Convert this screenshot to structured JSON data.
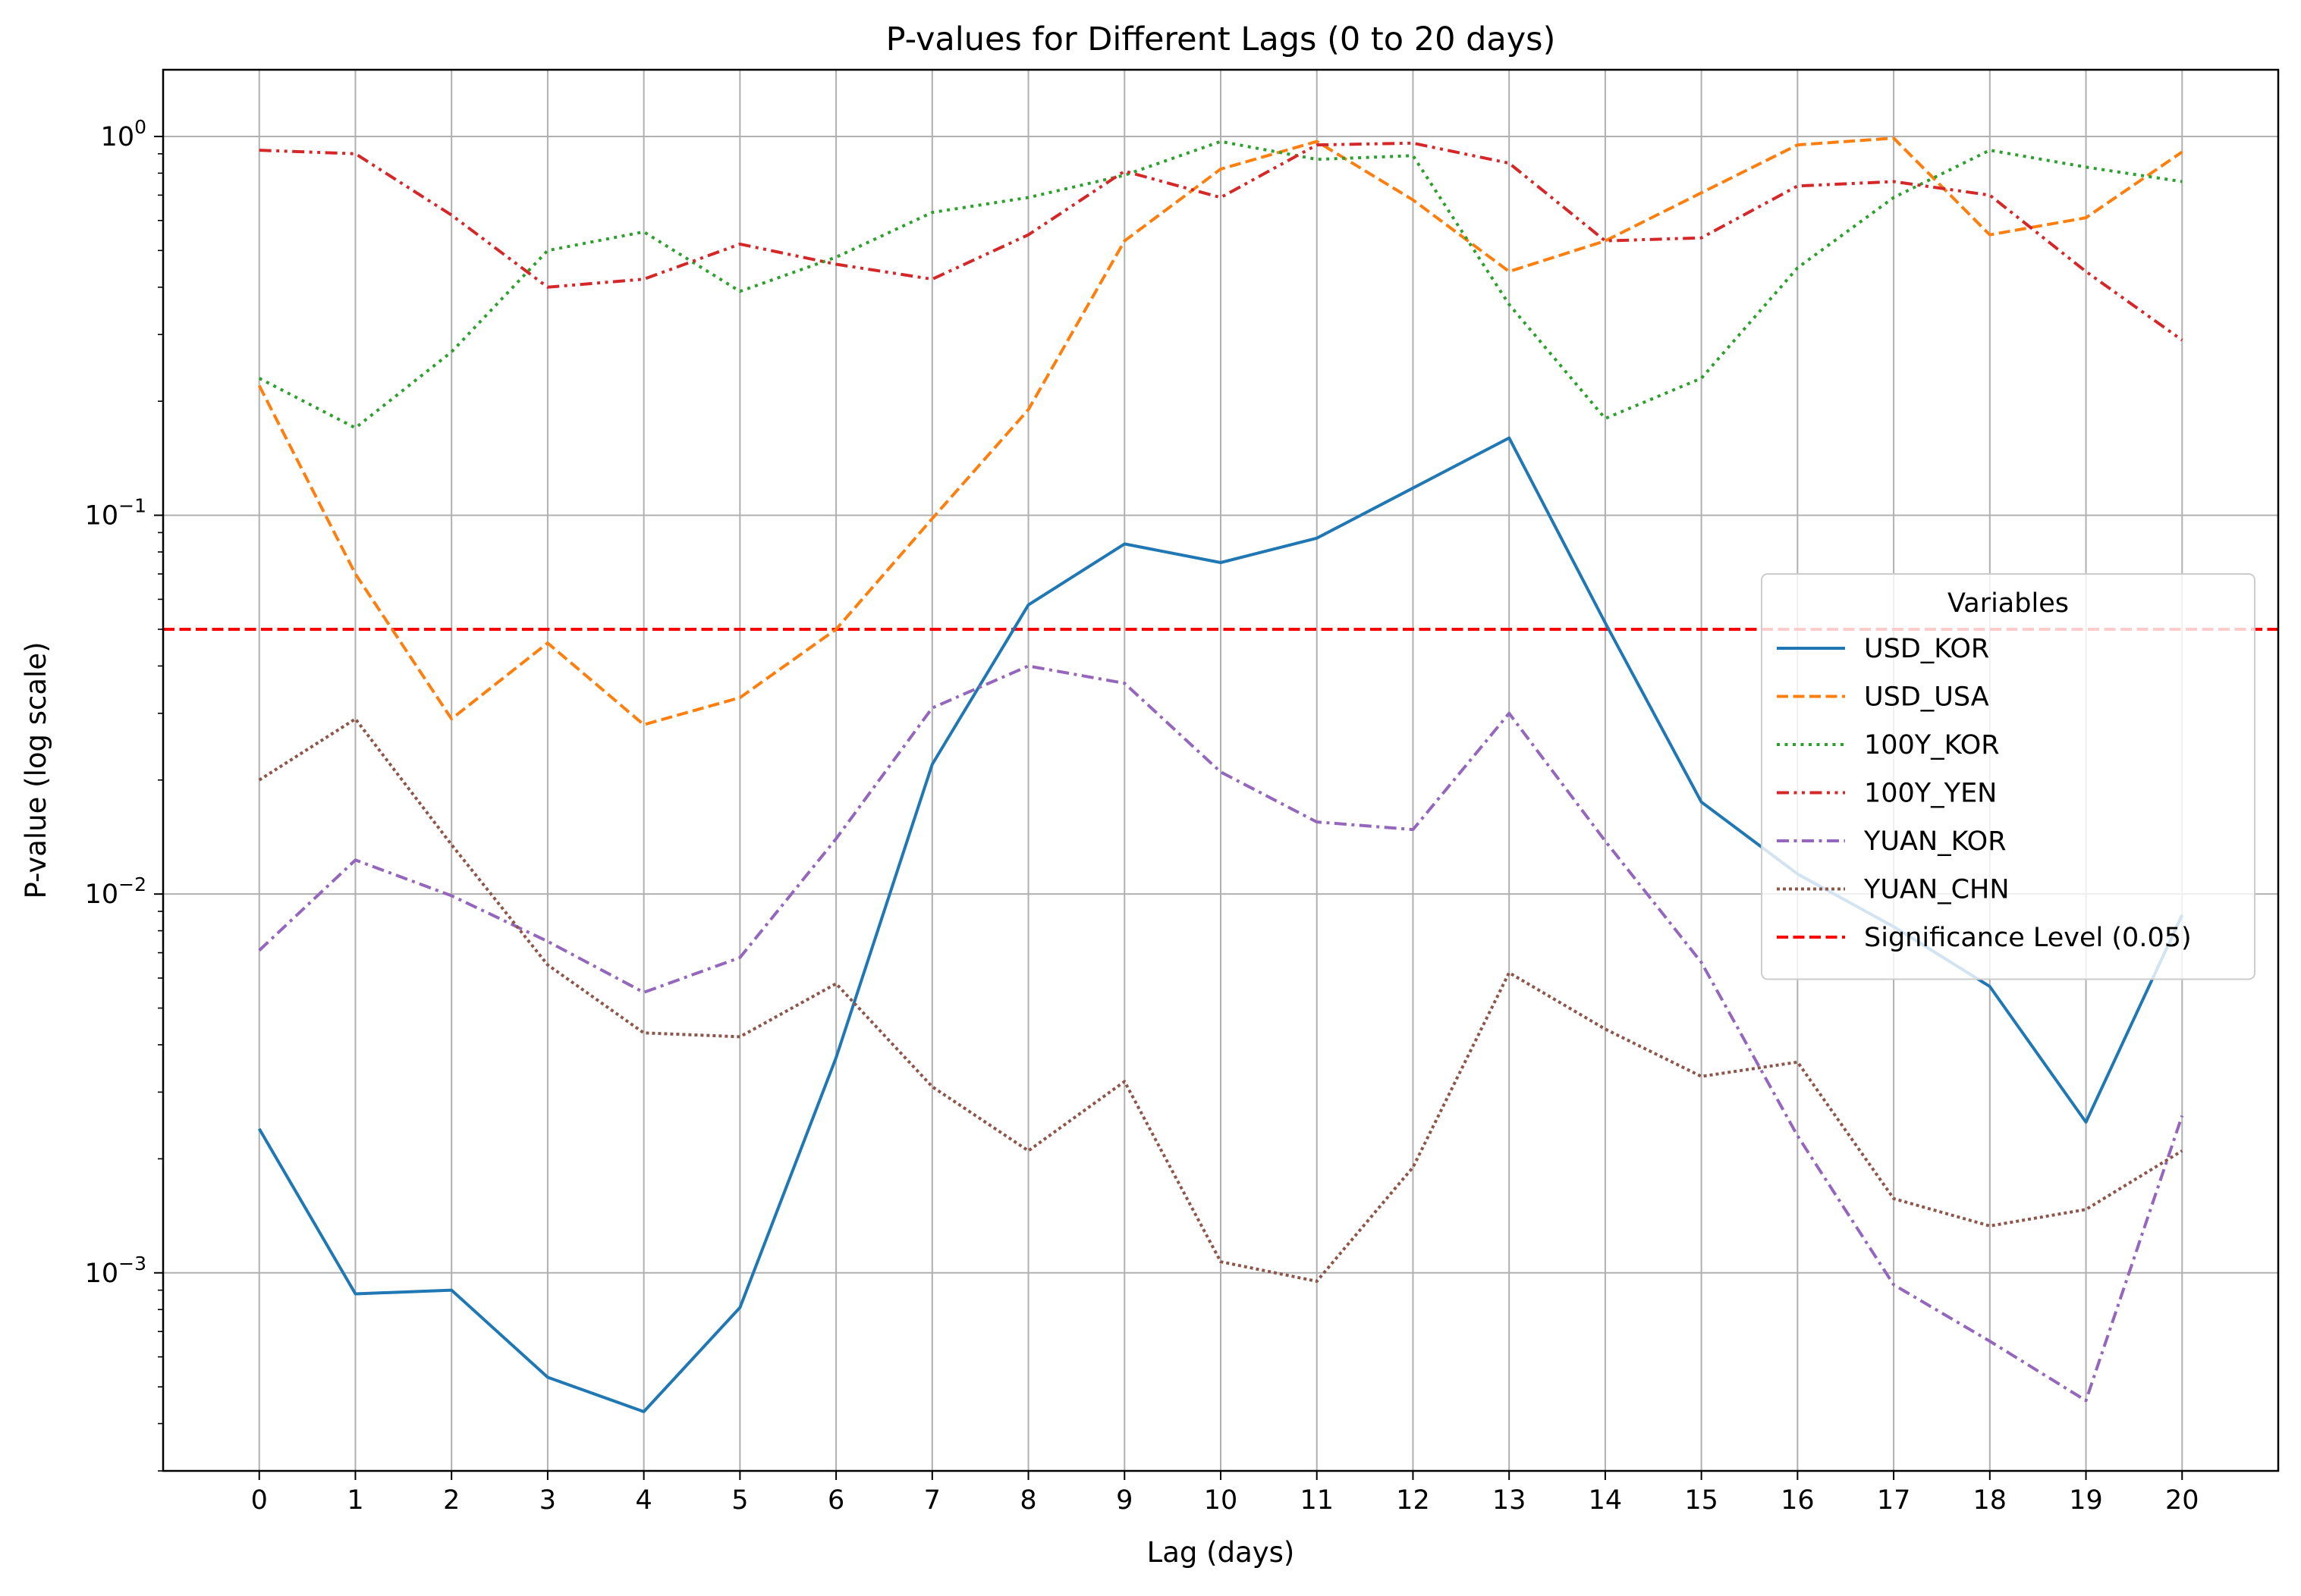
{
  "chart_data": {
    "type": "line",
    "title": "P-values for Different Lags (0 to 20 days)",
    "xlabel": "Lag (days)",
    "ylabel": "P-value (log scale)",
    "y_scale": "log",
    "ylim": [
      0.0003,
      1.5
    ],
    "xlim": [
      -1,
      21
    ],
    "grid": true,
    "legend_title": "Variables",
    "legend_position": "center-right",
    "x": [
      0,
      1,
      2,
      3,
      4,
      5,
      6,
      7,
      8,
      9,
      10,
      11,
      12,
      13,
      14,
      15,
      16,
      17,
      18,
      19,
      20
    ],
    "x_ticks": [
      "0",
      "1",
      "2",
      "3",
      "4",
      "5",
      "6",
      "7",
      "8",
      "9",
      "10",
      "11",
      "12",
      "13",
      "14",
      "15",
      "16",
      "17",
      "18",
      "19",
      "20"
    ],
    "y_ticks": [
      {
        "base": "10",
        "exp": "0",
        "value": 1
      },
      {
        "base": "10",
        "exp": "−1",
        "value": 0.1
      },
      {
        "base": "10",
        "exp": "−2",
        "value": 0.01
      },
      {
        "base": "10",
        "exp": "−3",
        "value": 0.001
      }
    ],
    "series": [
      {
        "name": "USD_KOR",
        "color": "#1f77b4",
        "dash": "solid",
        "values": [
          0.0024,
          0.00088,
          0.0009,
          0.00053,
          0.00043,
          0.00081,
          0.0037,
          0.022,
          0.058,
          0.084,
          0.075,
          0.087,
          0.118,
          0.16,
          0.052,
          0.0175,
          0.0113,
          0.0082,
          0.0057,
          0.0025,
          0.0088
        ]
      },
      {
        "name": "USD_USA",
        "color": "#ff7f0e",
        "dash": "dashed",
        "values": [
          0.22,
          0.07,
          0.029,
          0.046,
          0.028,
          0.033,
          0.05,
          0.098,
          0.19,
          0.53,
          0.82,
          0.97,
          0.68,
          0.44,
          0.53,
          0.71,
          0.95,
          0.99,
          0.55,
          0.61,
          0.91
        ]
      },
      {
        "name": "100Y_KOR",
        "color": "#2ca02c",
        "dash": "dotted",
        "values": [
          0.23,
          0.17,
          0.27,
          0.5,
          0.56,
          0.39,
          0.48,
          0.63,
          0.69,
          0.79,
          0.97,
          0.87,
          0.89,
          0.36,
          0.18,
          0.23,
          0.45,
          0.69,
          0.92,
          0.83,
          0.76
        ]
      },
      {
        "name": "100Y_YEN",
        "color": "#d62728",
        "dash": "dashdotdot",
        "values": [
          0.92,
          0.9,
          0.62,
          0.4,
          0.42,
          0.52,
          0.46,
          0.42,
          0.55,
          0.81,
          0.69,
          0.95,
          0.96,
          0.85,
          0.53,
          0.54,
          0.74,
          0.76,
          0.7,
          0.44,
          0.29
        ]
      },
      {
        "name": "YUAN_KOR",
        "color": "#9467bd",
        "dash": "dashdot",
        "values": [
          0.0071,
          0.0123,
          0.0099,
          0.0075,
          0.0055,
          0.0068,
          0.014,
          0.031,
          0.04,
          0.036,
          0.021,
          0.0155,
          0.0148,
          0.03,
          0.0138,
          0.0066,
          0.0023,
          0.00093,
          0.00066,
          0.00046,
          0.0026
        ]
      },
      {
        "name": "YUAN_CHN",
        "color": "#8c564b",
        "dash": "densedot",
        "values": [
          0.02,
          0.029,
          0.0135,
          0.0065,
          0.0043,
          0.0042,
          0.0058,
          0.0031,
          0.0021,
          0.0032,
          0.00107,
          0.00095,
          0.0019,
          0.0062,
          0.0044,
          0.0033,
          0.0036,
          0.00157,
          0.00133,
          0.00147,
          0.0021
        ]
      }
    ],
    "reference_lines": [
      {
        "name": "Significance Level (0.05)",
        "value": 0.05,
        "color": "#ff0000",
        "dash": "dashed",
        "orientation": "horizontal"
      }
    ]
  }
}
